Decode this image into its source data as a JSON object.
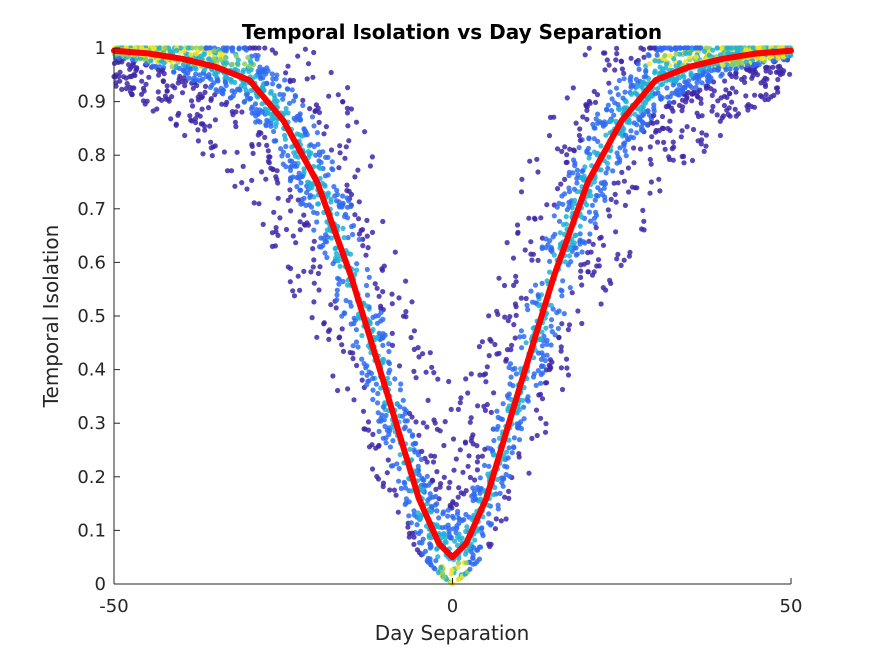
{
  "chart_data": {
    "type": "scatter",
    "title": "Temporal Isolation vs Day Separation",
    "xlabel": "Day Separation",
    "ylabel": "Temporal Isolation",
    "xlim": [
      -50,
      50
    ],
    "ylim": [
      0,
      1
    ],
    "xticks": [
      "-50",
      "0",
      "50"
    ],
    "yticks": [
      "0",
      "0.1",
      "0.2",
      "0.3",
      "0.4",
      "0.5",
      "0.6",
      "0.7",
      "0.8",
      "0.9",
      "1"
    ],
    "grid": false,
    "legend": "none",
    "colormap": "parula (point density)",
    "colors": {
      "low_density": "#3e26a8",
      "mid_low": "#2f6bf0",
      "mid": "#1fb1d6",
      "mid_high": "#8ccf5a",
      "high_density": "#f7e51e",
      "mean_line": "#ff0000",
      "axis": "#262626"
    },
    "series": [
      {
        "kind": "mean-curve",
        "x": [
          -50,
          -45,
          -40,
          -35,
          -30,
          -25,
          -20,
          -15,
          -10,
          -5,
          -2,
          0,
          2,
          5,
          10,
          15,
          20,
          25,
          30,
          35,
          40,
          45,
          50
        ],
        "y": [
          0.995,
          0.99,
          0.98,
          0.965,
          0.94,
          0.865,
          0.75,
          0.575,
          0.37,
          0.16,
          0.075,
          0.05,
          0.075,
          0.16,
          0.37,
          0.575,
          0.75,
          0.865,
          0.94,
          0.965,
          0.98,
          0.99,
          0.995
        ]
      },
      {
        "kind": "scatter-envelope",
        "x": [
          -50,
          -45,
          -40,
          -35,
          -30,
          -25,
          -20,
          -15,
          -10,
          -5,
          -2,
          0,
          2,
          5,
          10,
          15,
          20,
          25,
          30,
          35,
          40,
          45,
          50
        ],
        "y_min": [
          0.93,
          0.89,
          0.84,
          0.78,
          0.7,
          0.58,
          0.45,
          0.3,
          0.16,
          0.06,
          0.02,
          0.0,
          0.02,
          0.06,
          0.16,
          0.3,
          0.45,
          0.58,
          0.7,
          0.78,
          0.84,
          0.89,
          0.93
        ],
        "y_max": [
          1.0,
          1.0,
          1.0,
          1.0,
          1.0,
          1.0,
          1.0,
          0.95,
          0.75,
          0.5,
          0.42,
          0.4,
          0.42,
          0.5,
          0.75,
          0.95,
          1.0,
          1.0,
          1.0,
          1.0,
          1.0,
          1.0,
          1.0
        ]
      }
    ]
  }
}
